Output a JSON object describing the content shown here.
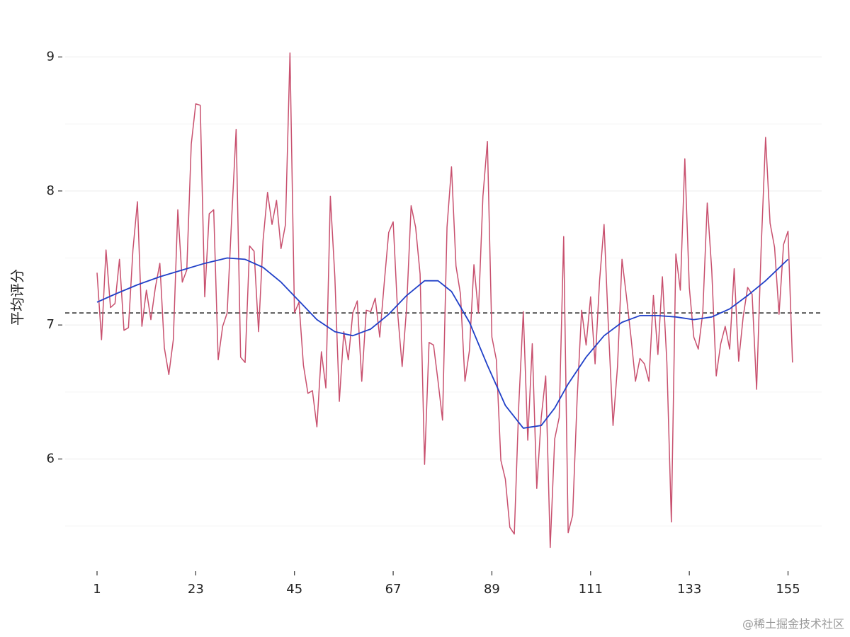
{
  "chart_data": {
    "type": "line",
    "ylabel": "平均评分",
    "xlabel": "",
    "title": "",
    "xlim": [
      1,
      156
    ],
    "ylim": [
      5.3,
      9.15
    ],
    "x_ticks": [
      1,
      23,
      45,
      67,
      89,
      111,
      133,
      155
    ],
    "y_ticks": [
      6,
      7,
      8,
      9
    ],
    "y_minor_gridlines": [
      5.5,
      6.5,
      7.5,
      8.5
    ],
    "grid": true,
    "reference_line": {
      "y": 7.09,
      "style": "dashed",
      "color": "#222222"
    },
    "series": [
      {
        "color": "#c8506e",
        "x_start": 1,
        "values": [
          7.39,
          6.89,
          7.56,
          7.13,
          7.16,
          7.49,
          6.96,
          6.98,
          7.56,
          7.92,
          6.99,
          7.26,
          7.04,
          7.28,
          7.46,
          6.83,
          6.63,
          6.89,
          7.86,
          7.32,
          7.41,
          8.35,
          8.65,
          8.64,
          7.21,
          7.83,
          7.86,
          6.74,
          6.99,
          7.09,
          7.79,
          8.46,
          6.76,
          6.72,
          7.59,
          7.55,
          6.95,
          7.63,
          7.99,
          7.75,
          7.93,
          7.57,
          7.75,
          9.03,
          7.09,
          7.17,
          6.7,
          6.49,
          6.51,
          6.24,
          6.8,
          6.53,
          7.96,
          7.36,
          6.43,
          6.95,
          6.74,
          7.09,
          7.18,
          6.58,
          7.11,
          7.1,
          7.2,
          6.91,
          7.31,
          7.69,
          7.77,
          7.09,
          6.69,
          7.13,
          7.89,
          7.73,
          7.38,
          5.96,
          6.87,
          6.85,
          6.58,
          6.29,
          7.73,
          8.18,
          7.44,
          7.23,
          6.58,
          6.81,
          7.45,
          7.09,
          7.96,
          8.37,
          6.91,
          6.74,
          5.99,
          5.85,
          5.49,
          5.44,
          6.41,
          7.1,
          6.14,
          6.86,
          5.78,
          6.31,
          6.62,
          5.34,
          6.15,
          6.31,
          7.66,
          5.45,
          5.58,
          6.45,
          7.11,
          6.85,
          7.21,
          6.71,
          7.33,
          7.75,
          6.96,
          6.25,
          6.69,
          7.49,
          7.21,
          6.91,
          6.58,
          6.75,
          6.71,
          6.58,
          7.22,
          6.78,
          7.36,
          6.72,
          5.53,
          7.53,
          7.26,
          8.24,
          7.28,
          6.91,
          6.82,
          7.09,
          7.91,
          7.41,
          6.62,
          6.86,
          6.99,
          6.82,
          7.42,
          6.73,
          7.06,
          7.28,
          7.23,
          6.52,
          7.56,
          8.4,
          7.76,
          7.58,
          7.08,
          7.6,
          7.7,
          6.72
        ]
      },
      {
        "color": "#2040c8",
        "x": [
          1,
          5,
          10,
          15,
          20,
          25,
          30,
          34,
          38,
          42,
          46,
          50,
          54,
          58,
          62,
          66,
          70,
          74,
          77,
          80,
          84,
          88,
          92,
          96,
          100,
          103,
          106,
          110,
          114,
          118,
          122,
          126,
          130,
          134,
          138,
          142,
          146,
          150,
          155
        ],
        "values": [
          7.17,
          7.23,
          7.3,
          7.36,
          7.41,
          7.46,
          7.5,
          7.49,
          7.43,
          7.32,
          7.18,
          7.04,
          6.95,
          6.92,
          6.97,
          7.08,
          7.22,
          7.33,
          7.33,
          7.25,
          7.02,
          6.7,
          6.4,
          6.23,
          6.25,
          6.38,
          6.56,
          6.76,
          6.92,
          7.02,
          7.07,
          7.07,
          7.06,
          7.04,
          7.06,
          7.12,
          7.22,
          7.33,
          7.49
        ]
      }
    ]
  },
  "watermark": "@稀土掘金技术社区"
}
